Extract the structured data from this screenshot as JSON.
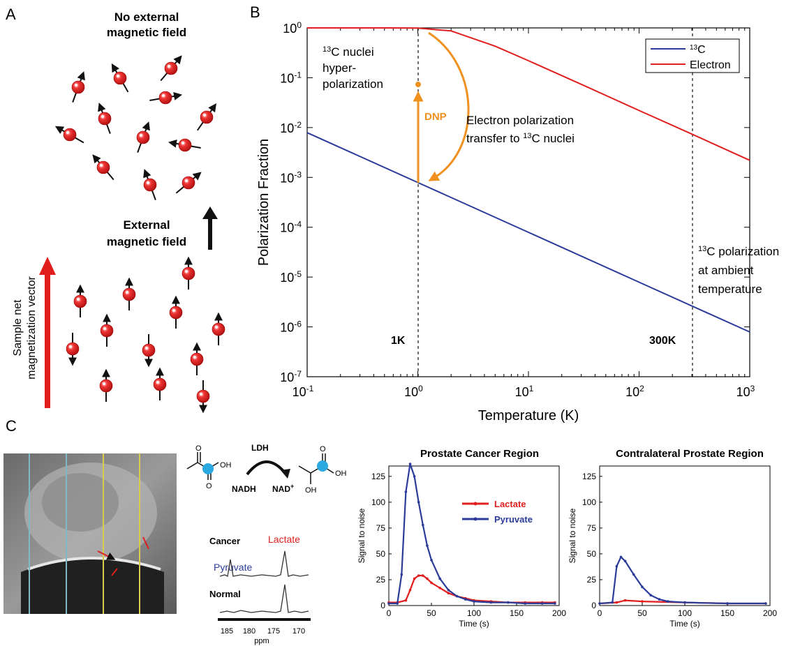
{
  "panel_a": {
    "label": "A",
    "top_title_1": "No external",
    "top_title_2": "magnetic field",
    "mid_title_1": "External",
    "mid_title_2": "magnetic field",
    "vector_label_1": "Sample net",
    "vector_label_2": "magnetization vector"
  },
  "panel_b": {
    "label": "B",
    "ylabel": "Polarization Fraction",
    "xlabel": "Temperature (K)",
    "x_tick_labels": [
      {
        "base": "10",
        "exp": "-1"
      },
      {
        "base": "10",
        "exp": "0"
      },
      {
        "base": "10",
        "exp": "1"
      },
      {
        "base": "10",
        "exp": "2"
      },
      {
        "base": "10",
        "exp": "3"
      }
    ],
    "y_tick_labels": [
      {
        "base": "10",
        "exp": "0"
      },
      {
        "base": "10",
        "exp": "-1"
      },
      {
        "base": "10",
        "exp": "-2"
      },
      {
        "base": "10",
        "exp": "-3"
      },
      {
        "base": "10",
        "exp": "-4"
      },
      {
        "base": "10",
        "exp": "-5"
      },
      {
        "base": "10",
        "exp": "-6"
      },
      {
        "base": "10",
        "exp": "-7"
      }
    ],
    "legend_c13_sup": "13",
    "legend_c13": "C",
    "legend_electron": "Electron",
    "ann_hyper_sup": "13",
    "ann_hyper_1": "C nuclei",
    "ann_hyper_2": "hyper-",
    "ann_hyper_3": "polarization",
    "ann_dnp": "DNP",
    "ann_transfer_1": "Electron polarization",
    "ann_transfer_2a": "transfer to ",
    "ann_transfer_2sup": "13",
    "ann_transfer_2b": "C nuclei",
    "ann_ambient_sup": "13",
    "ann_ambient_1": "C polarization",
    "ann_ambient_2": "at ambient",
    "ann_ambient_3": "temperature",
    "marker_1k": "1K",
    "marker_300k": "300K",
    "colors": {
      "c13": "#2b3b9a",
      "electron": "#e01e1e",
      "dnp": "#f0901e"
    }
  },
  "panel_c": {
    "label": "C",
    "enzyme": "LDH",
    "nadh": "NADH",
    "nad": "NAD",
    "nad_sup": "+",
    "oh_1": "OH",
    "oh_2": "OH",
    "oh_3": "OH",
    "o_1": "O",
    "o_2": "O",
    "o_3": "O",
    "spectra_cancer": "Cancer",
    "spectra_normal": "Normal",
    "spectra_lactate": "Lactate",
    "spectra_pyruvate": "Pyruvate",
    "ppm_ticks": [
      "185",
      "180",
      "175",
      "170"
    ],
    "ppm_label": "ppm",
    "colors": {
      "lactate": "#e01e1e",
      "pyruvate": "#2b3b9a"
    }
  },
  "chart_data": [
    {
      "type": "line",
      "title": "",
      "xlabel": "Temperature (K)",
      "ylabel": "Polarization Fraction",
      "x_scale": "log",
      "y_scale": "log",
      "xlim": [
        0.1,
        1000
      ],
      "ylim": [
        1e-07,
        1
      ],
      "legend": "top-right",
      "series": [
        {
          "name": "13C",
          "x": [
            0.1,
            1,
            10,
            100,
            1000
          ],
          "y": [
            0.0079,
            0.00079,
            7.9e-05,
            7.9e-06,
            7.9e-07
          ]
        },
        {
          "name": "Electron",
          "x": [
            0.1,
            0.5,
            1,
            2,
            5,
            10,
            30,
            100,
            300,
            1000
          ],
          "y": [
            1,
            1,
            0.99,
            0.87,
            0.43,
            0.22,
            0.074,
            0.022,
            0.0074,
            0.0022
          ]
        }
      ]
    },
    {
      "type": "line",
      "title": "Prostate Cancer Region",
      "xlabel": "Time (s)",
      "ylabel": "Signal to noise",
      "xlim": [
        0,
        200
      ],
      "ylim": [
        0,
        135
      ],
      "x_ticks": [
        "0",
        "50",
        "100",
        "150",
        "200"
      ],
      "y_ticks": [
        "0",
        "25",
        "50",
        "75",
        "100",
        "125"
      ],
      "legend": "top-right",
      "series": [
        {
          "name": "Lactate",
          "x": [
            0,
            10,
            20,
            25,
            30,
            35,
            40,
            45,
            50,
            60,
            70,
            80,
            90,
            100,
            120,
            140,
            160,
            180,
            195
          ],
          "y": [
            3,
            3,
            5,
            15,
            26,
            29,
            29,
            26,
            22,
            17,
            12,
            9,
            7,
            5,
            4,
            3,
            3,
            3,
            3
          ]
        },
        {
          "name": "Pyruvate",
          "x": [
            0,
            10,
            15,
            20,
            25,
            30,
            35,
            40,
            45,
            50,
            60,
            70,
            80,
            90,
            100,
            120,
            140,
            160,
            180,
            195
          ],
          "y": [
            2,
            2,
            30,
            110,
            137,
            125,
            100,
            78,
            58,
            44,
            26,
            15,
            9,
            6,
            4,
            3,
            3,
            2,
            2,
            2
          ]
        }
      ]
    },
    {
      "type": "line",
      "title": "Contralateral Prostate Region",
      "xlabel": "Time (s)",
      "ylabel": "Signal to noise",
      "xlim": [
        0,
        200
      ],
      "ylim": [
        0,
        135
      ],
      "x_ticks": [
        "0",
        "50",
        "100",
        "150",
        "200"
      ],
      "y_ticks": [
        "0",
        "25",
        "50",
        "75",
        "100",
        "125"
      ],
      "series": [
        {
          "name": "Lactate",
          "x": [
            0,
            20,
            30,
            50,
            100,
            150,
            195
          ],
          "y": [
            2,
            3,
            5,
            4,
            3,
            2,
            2
          ]
        },
        {
          "name": "Pyruvate",
          "x": [
            0,
            15,
            20,
            25,
            30,
            40,
            50,
            60,
            70,
            80,
            100,
            150,
            195
          ],
          "y": [
            2,
            3,
            38,
            47,
            43,
            30,
            18,
            10,
            6,
            4,
            3,
            2,
            2
          ]
        }
      ]
    }
  ]
}
